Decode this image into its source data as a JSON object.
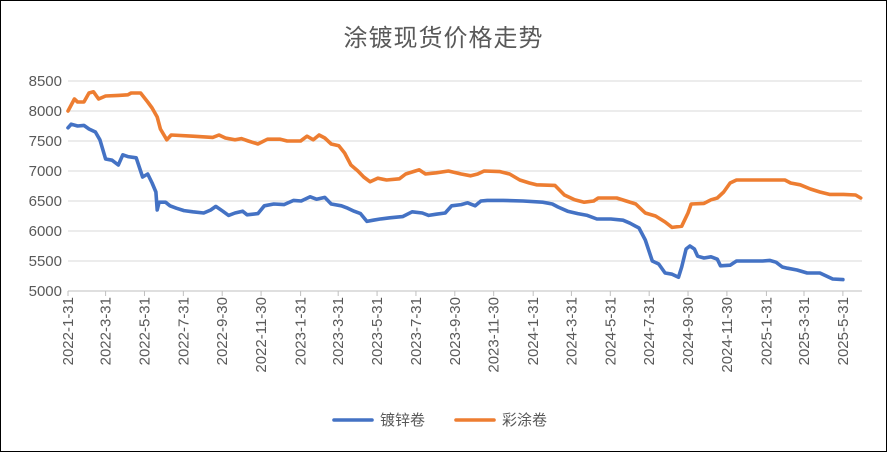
{
  "chart_data": {
    "type": "line",
    "title": "涂镀现货价格走势",
    "ylim": [
      5000,
      8500
    ],
    "yticks": [
      5000,
      5500,
      6000,
      6500,
      7000,
      7500,
      8000,
      8500
    ],
    "x_tick_labels": [
      "2022-1-31",
      "2022-3-31",
      "2022-5-31",
      "2022-7-31",
      "2022-9-30",
      "2022-11-30",
      "2023-1-31",
      "2023-3-31",
      "2023-5-31",
      "2023-7-31",
      "2023-9-30",
      "2023-11-30",
      "2024-1-31",
      "2024-3-31",
      "2024-5-31",
      "2024-7-31",
      "2024-9-30",
      "2024-11-30",
      "2025-1-31",
      "2025-3-31",
      "2025-5-31"
    ],
    "x_range": [
      "2022-01-31",
      "2025-06-30"
    ],
    "grid": "horizontal",
    "legend_position": "bottom",
    "series": [
      {
        "name": "镀锌卷",
        "color": "#4472C4",
        "points": [
          [
            "2022-01-31",
            7720
          ],
          [
            "2022-02-05",
            7780
          ],
          [
            "2022-02-15",
            7750
          ],
          [
            "2022-02-25",
            7760
          ],
          [
            "2022-03-05",
            7700
          ],
          [
            "2022-03-15",
            7650
          ],
          [
            "2022-03-22",
            7520
          ],
          [
            "2022-03-31",
            7200
          ],
          [
            "2022-04-10",
            7180
          ],
          [
            "2022-04-20",
            7100
          ],
          [
            "2022-04-27",
            7270
          ],
          [
            "2022-05-05",
            7240
          ],
          [
            "2022-05-18",
            7220
          ],
          [
            "2022-05-28",
            6900
          ],
          [
            "2022-06-05",
            6950
          ],
          [
            "2022-06-12",
            6800
          ],
          [
            "2022-06-18",
            6650
          ],
          [
            "2022-06-20",
            6350
          ],
          [
            "2022-06-23",
            6480
          ],
          [
            "2022-07-03",
            6480
          ],
          [
            "2022-07-10",
            6420
          ],
          [
            "2022-07-20",
            6380
          ],
          [
            "2022-08-01",
            6340
          ],
          [
            "2022-08-15",
            6320
          ],
          [
            "2022-09-01",
            6300
          ],
          [
            "2022-09-12",
            6350
          ],
          [
            "2022-09-20",
            6410
          ],
          [
            "2022-10-01",
            6330
          ],
          [
            "2022-10-10",
            6260
          ],
          [
            "2022-10-20",
            6300
          ],
          [
            "2022-11-01",
            6330
          ],
          [
            "2022-11-08",
            6270
          ],
          [
            "2022-11-25",
            6290
          ],
          [
            "2022-12-05",
            6420
          ],
          [
            "2022-12-20",
            6450
          ],
          [
            "2023-01-05",
            6440
          ],
          [
            "2023-01-20",
            6510
          ],
          [
            "2023-02-01",
            6500
          ],
          [
            "2023-02-15",
            6570
          ],
          [
            "2023-02-25",
            6530
          ],
          [
            "2023-03-10",
            6560
          ],
          [
            "2023-03-20",
            6450
          ],
          [
            "2023-04-05",
            6420
          ],
          [
            "2023-04-15",
            6380
          ],
          [
            "2023-04-25",
            6330
          ],
          [
            "2023-05-05",
            6290
          ],
          [
            "2023-05-15",
            6160
          ],
          [
            "2023-05-25",
            6180
          ],
          [
            "2023-06-05",
            6200
          ],
          [
            "2023-06-20",
            6220
          ],
          [
            "2023-07-10",
            6240
          ],
          [
            "2023-07-25",
            6320
          ],
          [
            "2023-08-10",
            6300
          ],
          [
            "2023-08-20",
            6260
          ],
          [
            "2023-09-01",
            6280
          ],
          [
            "2023-09-15",
            6300
          ],
          [
            "2023-09-25",
            6420
          ],
          [
            "2023-10-10",
            6440
          ],
          [
            "2023-10-20",
            6470
          ],
          [
            "2023-11-01",
            6420
          ],
          [
            "2023-11-10",
            6500
          ],
          [
            "2023-11-20",
            6510
          ],
          [
            "2023-12-15",
            6510
          ],
          [
            "2024-01-15",
            6500
          ],
          [
            "2024-02-15",
            6480
          ],
          [
            "2024-03-01",
            6450
          ],
          [
            "2024-03-10",
            6400
          ],
          [
            "2024-03-25",
            6330
          ],
          [
            "2024-04-10",
            6290
          ],
          [
            "2024-04-25",
            6260
          ],
          [
            "2024-05-10",
            6200
          ],
          [
            "2024-06-01",
            6200
          ],
          [
            "2024-06-20",
            6180
          ],
          [
            "2024-07-01",
            6130
          ],
          [
            "2024-07-15",
            6050
          ],
          [
            "2024-07-25",
            5850
          ],
          [
            "2024-08-05",
            5500
          ],
          [
            "2024-08-15",
            5450
          ],
          [
            "2024-08-25",
            5300
          ],
          [
            "2024-09-05",
            5280
          ],
          [
            "2024-09-15",
            5230
          ],
          [
            "2024-09-20",
            5400
          ],
          [
            "2024-09-27",
            5700
          ],
          [
            "2024-10-03",
            5750
          ],
          [
            "2024-10-10",
            5700
          ],
          [
            "2024-10-15",
            5580
          ],
          [
            "2024-10-25",
            5550
          ],
          [
            "2024-11-05",
            5570
          ],
          [
            "2024-11-15",
            5530
          ],
          [
            "2024-11-20",
            5420
          ],
          [
            "2024-12-05",
            5430
          ],
          [
            "2024-12-15",
            5500
          ],
          [
            "2025-01-10",
            5500
          ],
          [
            "2025-01-25",
            5500
          ],
          [
            "2025-02-05",
            5510
          ],
          [
            "2025-02-15",
            5480
          ],
          [
            "2025-02-25",
            5400
          ],
          [
            "2025-03-05",
            5380
          ],
          [
            "2025-03-20",
            5350
          ],
          [
            "2025-04-05",
            5300
          ],
          [
            "2025-04-25",
            5300
          ],
          [
            "2025-05-05",
            5250
          ],
          [
            "2025-05-15",
            5200
          ],
          [
            "2025-05-31",
            5190
          ]
        ]
      },
      {
        "name": "彩涂卷",
        "color": "#ED7D31",
        "points": [
          [
            "2022-01-31",
            8000
          ],
          [
            "2022-02-05",
            8100
          ],
          [
            "2022-02-10",
            8200
          ],
          [
            "2022-02-15",
            8150
          ],
          [
            "2022-02-25",
            8150
          ],
          [
            "2022-03-05",
            8300
          ],
          [
            "2022-03-12",
            8320
          ],
          [
            "2022-03-20",
            8200
          ],
          [
            "2022-03-31",
            8250
          ],
          [
            "2022-04-20",
            8260
          ],
          [
            "2022-05-05",
            8270
          ],
          [
            "2022-05-10",
            8300
          ],
          [
            "2022-05-25",
            8300
          ],
          [
            "2022-06-05",
            8150
          ],
          [
            "2022-06-12",
            8050
          ],
          [
            "2022-06-20",
            7900
          ],
          [
            "2022-06-25",
            7700
          ],
          [
            "2022-07-05",
            7520
          ],
          [
            "2022-07-12",
            7600
          ],
          [
            "2022-08-15",
            7580
          ],
          [
            "2022-09-15",
            7560
          ],
          [
            "2022-09-25",
            7600
          ],
          [
            "2022-10-05",
            7550
          ],
          [
            "2022-10-20",
            7520
          ],
          [
            "2022-10-30",
            7540
          ],
          [
            "2022-11-10",
            7500
          ],
          [
            "2022-11-25",
            7450
          ],
          [
            "2022-12-10",
            7530
          ],
          [
            "2022-12-30",
            7530
          ],
          [
            "2023-01-10",
            7500
          ],
          [
            "2023-01-31",
            7500
          ],
          [
            "2023-02-10",
            7580
          ],
          [
            "2023-02-20",
            7520
          ],
          [
            "2023-03-01",
            7600
          ],
          [
            "2023-03-10",
            7550
          ],
          [
            "2023-03-20",
            7450
          ],
          [
            "2023-04-01",
            7420
          ],
          [
            "2023-04-10",
            7300
          ],
          [
            "2023-04-20",
            7100
          ],
          [
            "2023-05-01",
            7000
          ],
          [
            "2023-05-10",
            6900
          ],
          [
            "2023-05-20",
            6820
          ],
          [
            "2023-06-01",
            6880
          ],
          [
            "2023-06-15",
            6850
          ],
          [
            "2023-07-05",
            6870
          ],
          [
            "2023-07-15",
            6950
          ],
          [
            "2023-07-30",
            7000
          ],
          [
            "2023-08-05",
            7020
          ],
          [
            "2023-08-15",
            6950
          ],
          [
            "2023-09-01",
            6970
          ],
          [
            "2023-09-20",
            7000
          ],
          [
            "2023-10-10",
            6950
          ],
          [
            "2023-10-25",
            6920
          ],
          [
            "2023-11-05",
            6950
          ],
          [
            "2023-11-15",
            7000
          ],
          [
            "2023-12-10",
            6990
          ],
          [
            "2023-12-25",
            6950
          ],
          [
            "2024-01-10",
            6850
          ],
          [
            "2024-01-25",
            6800
          ],
          [
            "2024-02-05",
            6770
          ],
          [
            "2024-03-05",
            6760
          ],
          [
            "2024-03-20",
            6600
          ],
          [
            "2024-04-05",
            6520
          ],
          [
            "2024-04-20",
            6480
          ],
          [
            "2024-05-05",
            6500
          ],
          [
            "2024-05-12",
            6550
          ],
          [
            "2024-06-10",
            6550
          ],
          [
            "2024-06-25",
            6500
          ],
          [
            "2024-07-10",
            6450
          ],
          [
            "2024-07-25",
            6300
          ],
          [
            "2024-08-10",
            6250
          ],
          [
            "2024-08-25",
            6150
          ],
          [
            "2024-09-05",
            6060
          ],
          [
            "2024-09-20",
            6080
          ],
          [
            "2024-09-30",
            6300
          ],
          [
            "2024-10-05",
            6450
          ],
          [
            "2024-10-25",
            6460
          ],
          [
            "2024-11-05",
            6520
          ],
          [
            "2024-11-15",
            6550
          ],
          [
            "2024-11-25",
            6650
          ],
          [
            "2024-12-05",
            6800
          ],
          [
            "2024-12-15",
            6850
          ],
          [
            "2025-01-15",
            6850
          ],
          [
            "2025-02-15",
            6850
          ],
          [
            "2025-03-01",
            6850
          ],
          [
            "2025-03-10",
            6800
          ],
          [
            "2025-03-25",
            6770
          ],
          [
            "2025-04-10",
            6700
          ],
          [
            "2025-04-25",
            6650
          ],
          [
            "2025-05-10",
            6610
          ],
          [
            "2025-06-01",
            6610
          ],
          [
            "2025-06-20",
            6600
          ],
          [
            "2025-06-28",
            6550
          ]
        ]
      }
    ]
  }
}
